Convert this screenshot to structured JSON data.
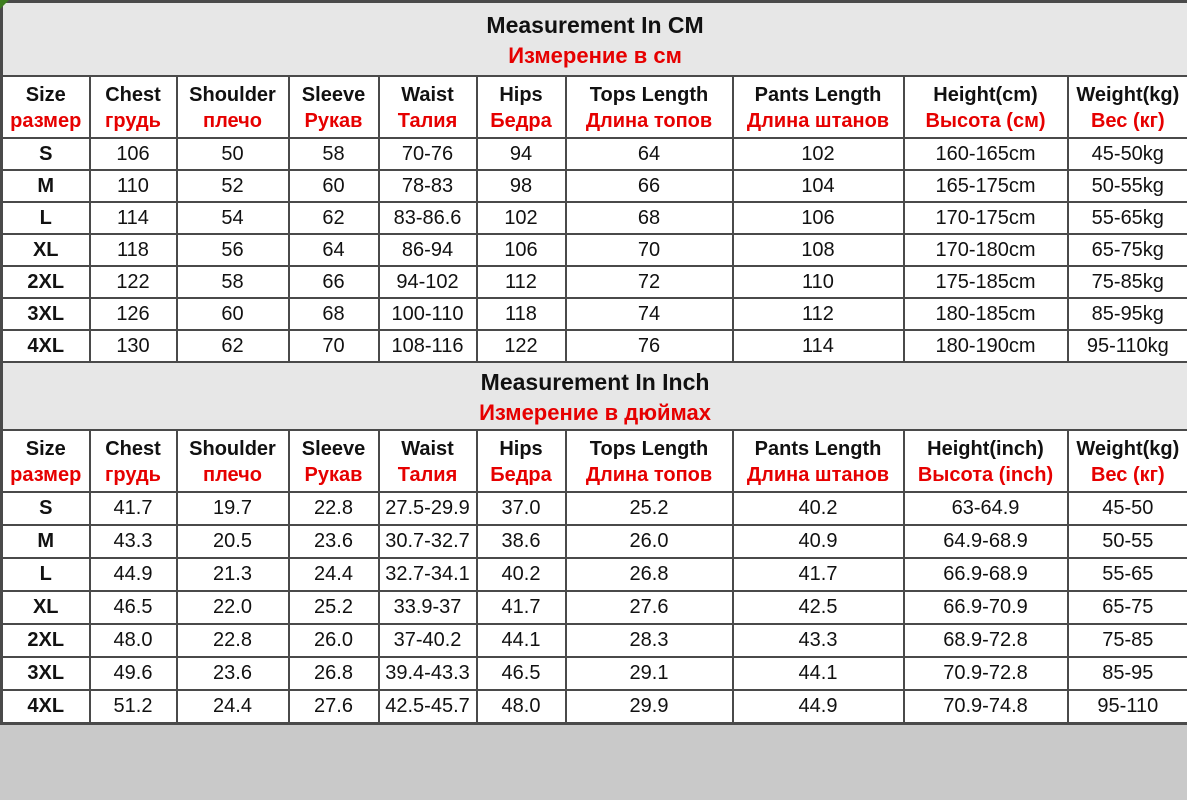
{
  "colors": {
    "accent_red": "#e60000",
    "text_black": "#111111",
    "section_bg": "#e7e7e7",
    "border": "#4a4a4a",
    "corner_marker_green": "#3e7d1f"
  },
  "sections": [
    {
      "title_en": "Measurement In CM",
      "title_ru": "Измерение в см",
      "columns": [
        {
          "en": "Size",
          "ru": "размер"
        },
        {
          "en": "Chest",
          "ru": "грудь"
        },
        {
          "en": "Shoulder",
          "ru": "плечо"
        },
        {
          "en": "Sleeve",
          "ru": "Рукав"
        },
        {
          "en": "Waist",
          "ru": "Талия"
        },
        {
          "en": "Hips",
          "ru": "Бедра"
        },
        {
          "en": "Tops Length",
          "ru": "Длина топов"
        },
        {
          "en": "Pants Length",
          "ru": "Длина штанов"
        },
        {
          "en": "Height(cm)",
          "ru": "Высота (см)"
        },
        {
          "en": "Weight(kg)",
          "ru": "Вес (кг)"
        }
      ],
      "rows": [
        [
          "S",
          "106",
          "50",
          "58",
          "70-76",
          "94",
          "64",
          "102",
          "160-165cm",
          "45-50kg"
        ],
        [
          "M",
          "110",
          "52",
          "60",
          "78-83",
          "98",
          "66",
          "104",
          "165-175cm",
          "50-55kg"
        ],
        [
          "L",
          "114",
          "54",
          "62",
          "83-86.6",
          "102",
          "68",
          "106",
          "170-175cm",
          "55-65kg"
        ],
        [
          "XL",
          "118",
          "56",
          "64",
          "86-94",
          "106",
          "70",
          "108",
          "170-180cm",
          "65-75kg"
        ],
        [
          "2XL",
          "122",
          "58",
          "66",
          "94-102",
          "112",
          "72",
          "110",
          "175-185cm",
          "75-85kg"
        ],
        [
          "3XL",
          "126",
          "60",
          "68",
          "100-110",
          "118",
          "74",
          "112",
          "180-185cm",
          "85-95kg"
        ],
        [
          "4XL",
          "130",
          "62",
          "70",
          "108-116",
          "122",
          "76",
          "114",
          "180-190cm",
          "95-110kg"
        ]
      ]
    },
    {
      "title_en": "Measurement In Inch",
      "title_ru": "Измерение в дюймах",
      "columns": [
        {
          "en": "Size",
          "ru": "размер"
        },
        {
          "en": "Chest",
          "ru": "грудь"
        },
        {
          "en": "Shoulder",
          "ru": "плечо"
        },
        {
          "en": "Sleeve",
          "ru": "Рукав"
        },
        {
          "en": "Waist",
          "ru": "Талия"
        },
        {
          "en": "Hips",
          "ru": "Бедра"
        },
        {
          "en": "Tops Length",
          "ru": "Длина топов"
        },
        {
          "en": "Pants Length",
          "ru": "Длина штанов"
        },
        {
          "en": "Height(inch)",
          "ru": "Высота (inch)"
        },
        {
          "en": "Weight(kg)",
          "ru": "Вес (кг)"
        }
      ],
      "rows": [
        [
          "S",
          "41.7",
          "19.7",
          "22.8",
          "27.5-29.9",
          "37.0",
          "25.2",
          "40.2",
          "63-64.9",
          "45-50"
        ],
        [
          "M",
          "43.3",
          "20.5",
          "23.6",
          "30.7-32.7",
          "38.6",
          "26.0",
          "40.9",
          "64.9-68.9",
          "50-55"
        ],
        [
          "L",
          "44.9",
          "21.3",
          "24.4",
          "32.7-34.1",
          "40.2",
          "26.8",
          "41.7",
          "66.9-68.9",
          "55-65"
        ],
        [
          "XL",
          "46.5",
          "22.0",
          "25.2",
          "33.9-37",
          "41.7",
          "27.6",
          "42.5",
          "66.9-70.9",
          "65-75"
        ],
        [
          "2XL",
          "48.0",
          "22.8",
          "26.0",
          "37-40.2",
          "44.1",
          "28.3",
          "43.3",
          "68.9-72.8",
          "75-85"
        ],
        [
          "3XL",
          "49.6",
          "23.6",
          "26.8",
          "39.4-43.3",
          "46.5",
          "29.1",
          "44.1",
          "70.9-72.8",
          "85-95"
        ],
        [
          "4XL",
          "51.2",
          "24.4",
          "27.6",
          "42.5-45.7",
          "48.0",
          "29.9",
          "44.9",
          "70.9-74.8",
          "95-110"
        ]
      ]
    }
  ]
}
